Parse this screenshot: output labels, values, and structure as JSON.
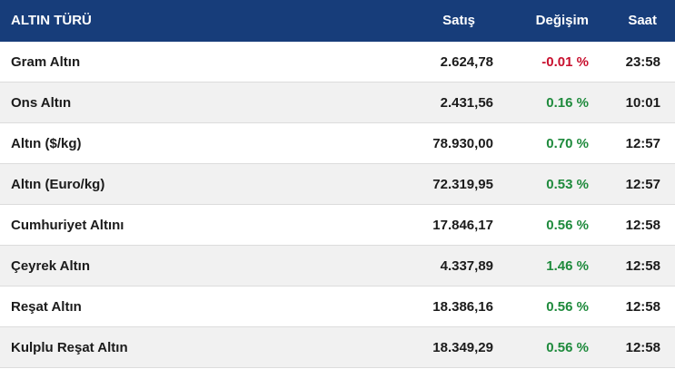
{
  "table": {
    "header": [
      "ALTIN TÜRÜ",
      "Satış",
      "Değişim",
      "Saat"
    ],
    "rows": [
      [
        "Gram Altın",
        "2.624,78",
        "-0.01 %",
        "23:58"
      ],
      [
        "Ons Altın",
        "2.431,56",
        "0.16 %",
        "10:01"
      ],
      [
        "Altın ($/kg)",
        "78.930,00",
        "0.70 %",
        "12:57"
      ],
      [
        "Altın (Euro/kg)",
        "72.319,95",
        "0.53 %",
        "12:57"
      ],
      [
        "Cumhuriyet Altını",
        "17.846,17",
        "0.56 %",
        "12:58"
      ],
      [
        "Çeyrek Altın",
        "4.337,89",
        "1.46 %",
        "12:58"
      ],
      [
        "Reşat Altın",
        "18.386,16",
        "0.56 %",
        "12:58"
      ],
      [
        "Kulplu Reşat Altın",
        "18.349,29",
        "0.56 %",
        "12:58"
      ]
    ],
    "change_colors": {
      "negative": "#c8102e",
      "positive": "#1e8a3c"
    }
  }
}
